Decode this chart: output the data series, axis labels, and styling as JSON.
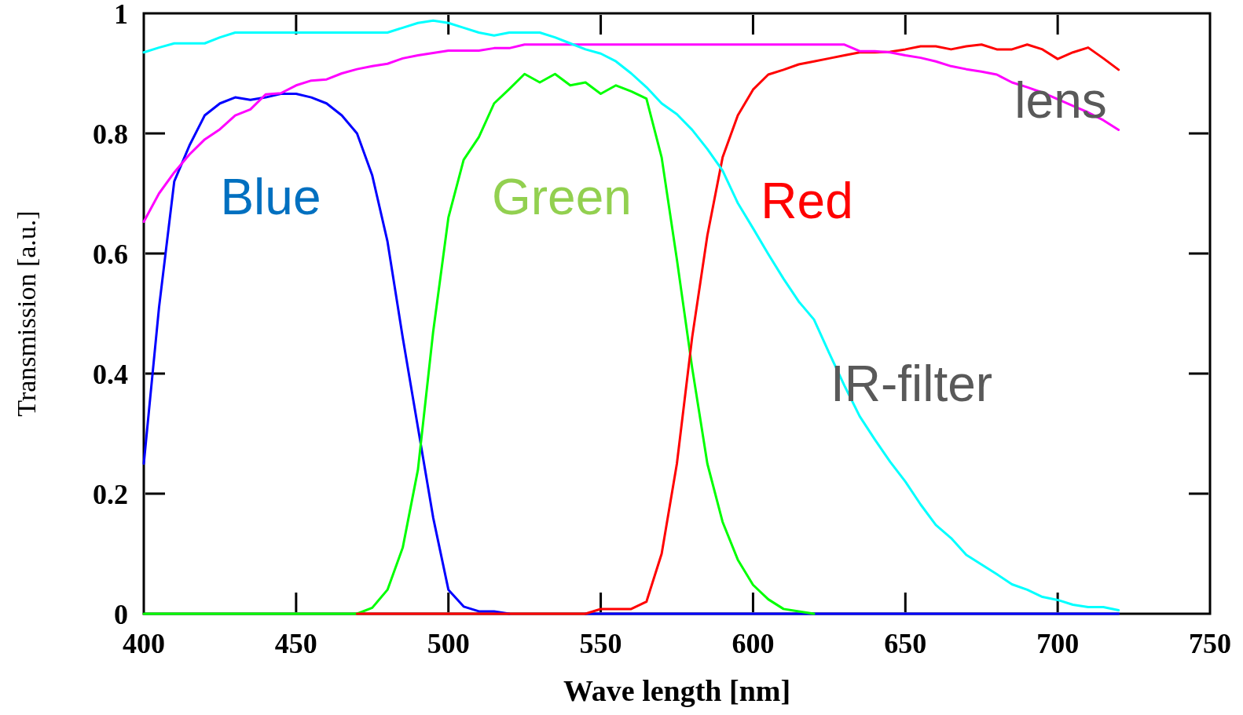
{
  "chart_data": {
    "type": "line",
    "xlabel": "Wave length [nm]",
    "ylabel": "Transmission [a.u.]",
    "xlim": [
      400,
      750
    ],
    "xticks": [
      400,
      450,
      500,
      550,
      600,
      650,
      700,
      750
    ],
    "ylim": [
      0,
      1
    ],
    "yticks": [
      0,
      0.2,
      0.4,
      0.6,
      0.8,
      1
    ],
    "grid": false,
    "legend": false,
    "marker": "none",
    "line_style": "solid",
    "x": [
      400,
      405,
      410,
      415,
      420,
      425,
      430,
      435,
      440,
      445,
      450,
      455,
      460,
      465,
      470,
      475,
      480,
      485,
      490,
      495,
      500,
      505,
      510,
      515,
      520,
      525,
      530,
      535,
      540,
      545,
      550,
      555,
      560,
      565,
      570,
      575,
      580,
      585,
      590,
      595,
      600,
      605,
      610,
      615,
      620,
      625,
      630,
      635,
      640,
      645,
      650,
      655,
      660,
      665,
      670,
      675,
      680,
      685,
      690,
      695,
      700,
      705,
      710,
      715,
      720
    ],
    "series": [
      {
        "name": "Blue",
        "color": "#0000ff",
        "values": [
          0.25,
          0.51,
          0.72,
          0.78,
          0.83,
          0.85,
          0.86,
          0.856,
          0.86,
          0.866,
          0.866,
          0.86,
          0.85,
          0.83,
          0.8,
          0.73,
          0.62,
          0.46,
          0.31,
          0.16,
          0.04,
          0.012,
          0.004,
          0.004,
          0,
          null,
          null,
          null,
          null,
          0,
          0,
          0,
          0,
          0,
          0,
          0,
          0,
          0,
          0,
          0,
          0,
          0,
          0,
          0,
          0,
          0,
          0,
          0,
          0,
          0,
          0,
          0,
          0,
          0,
          0,
          0,
          0,
          0,
          0,
          0,
          0,
          0,
          0,
          0,
          0
        ]
      },
      {
        "name": "Green",
        "color": "#00ff00",
        "values": [
          0,
          0,
          0,
          0,
          0,
          0,
          0,
          0,
          0,
          0,
          0,
          0,
          0,
          0,
          0,
          0.01,
          0.04,
          0.11,
          0.24,
          0.47,
          0.66,
          0.756,
          0.794,
          0.85,
          0.874,
          0.899,
          0.885,
          0.899,
          0.88,
          0.885,
          0.866,
          0.88,
          0.87,
          0.858,
          0.76,
          0.59,
          0.41,
          0.25,
          0.153,
          0.09,
          0.048,
          0.024,
          0.008,
          0.004,
          0,
          null,
          null,
          null,
          null,
          null,
          null,
          null,
          null,
          null,
          null,
          null,
          null,
          null,
          null,
          null,
          null,
          null,
          null,
          null,
          null
        ]
      },
      {
        "name": "Red",
        "color": "#ff0000",
        "values": [
          null,
          null,
          null,
          null,
          null,
          null,
          null,
          null,
          null,
          null,
          null,
          null,
          null,
          null,
          0,
          0,
          0,
          0,
          0,
          0,
          0,
          0,
          0,
          0,
          0,
          0,
          0,
          0,
          0,
          0,
          0.008,
          0.008,
          0.008,
          0.02,
          0.1,
          0.25,
          0.46,
          0.63,
          0.76,
          0.83,
          0.873,
          0.898,
          0.906,
          0.915,
          0.92,
          0.925,
          0.93,
          0.935,
          0.935,
          0.936,
          0.94,
          0.945,
          0.945,
          0.94,
          0.945,
          0.948,
          0.94,
          0.94,
          0.948,
          0.94,
          0.924,
          0.935,
          0.943,
          0.925,
          0.906
        ]
      },
      {
        "name": "lens",
        "color": "#ff00ff",
        "values": [
          0.653,
          0.7,
          0.735,
          0.765,
          0.79,
          0.807,
          0.83,
          0.84,
          0.865,
          0.867,
          0.88,
          0.888,
          0.89,
          0.9,
          0.907,
          0.912,
          0.916,
          0.925,
          0.93,
          0.934,
          0.938,
          0.938,
          0.938,
          0.942,
          0.942,
          0.948,
          0.948,
          0.948,
          0.948,
          0.948,
          0.948,
          0.948,
          0.948,
          0.948,
          0.948,
          0.948,
          0.948,
          0.948,
          0.948,
          0.948,
          0.948,
          0.948,
          0.948,
          0.948,
          0.948,
          0.948,
          0.948,
          0.937,
          0.937,
          0.935,
          0.93,
          0.926,
          0.92,
          0.912,
          0.907,
          0.903,
          0.898,
          0.885,
          0.877,
          0.868,
          0.857,
          0.846,
          0.835,
          0.822,
          0.806
        ]
      },
      {
        "name": "IR-filter",
        "color": "#00ffff",
        "values": [
          0.935,
          0.943,
          0.95,
          0.95,
          0.95,
          0.96,
          0.968,
          0.968,
          0.968,
          0.968,
          0.968,
          0.968,
          0.968,
          0.968,
          0.968,
          0.968,
          0.968,
          0.976,
          0.984,
          0.988,
          0.984,
          0.976,
          0.968,
          0.963,
          0.968,
          0.968,
          0.968,
          0.96,
          0.95,
          0.94,
          0.933,
          0.92,
          0.9,
          0.877,
          0.85,
          0.832,
          0.806,
          0.774,
          0.738,
          0.684,
          0.642,
          0.599,
          0.558,
          0.52,
          0.49,
          0.434,
          0.38,
          0.329,
          0.29,
          0.253,
          0.22,
          0.182,
          0.148,
          0.126,
          0.098,
          0.082,
          0.066,
          0.049,
          0.04,
          0.028,
          0.023,
          0.015,
          0.011,
          0.011,
          0.006
        ]
      }
    ]
  }
}
